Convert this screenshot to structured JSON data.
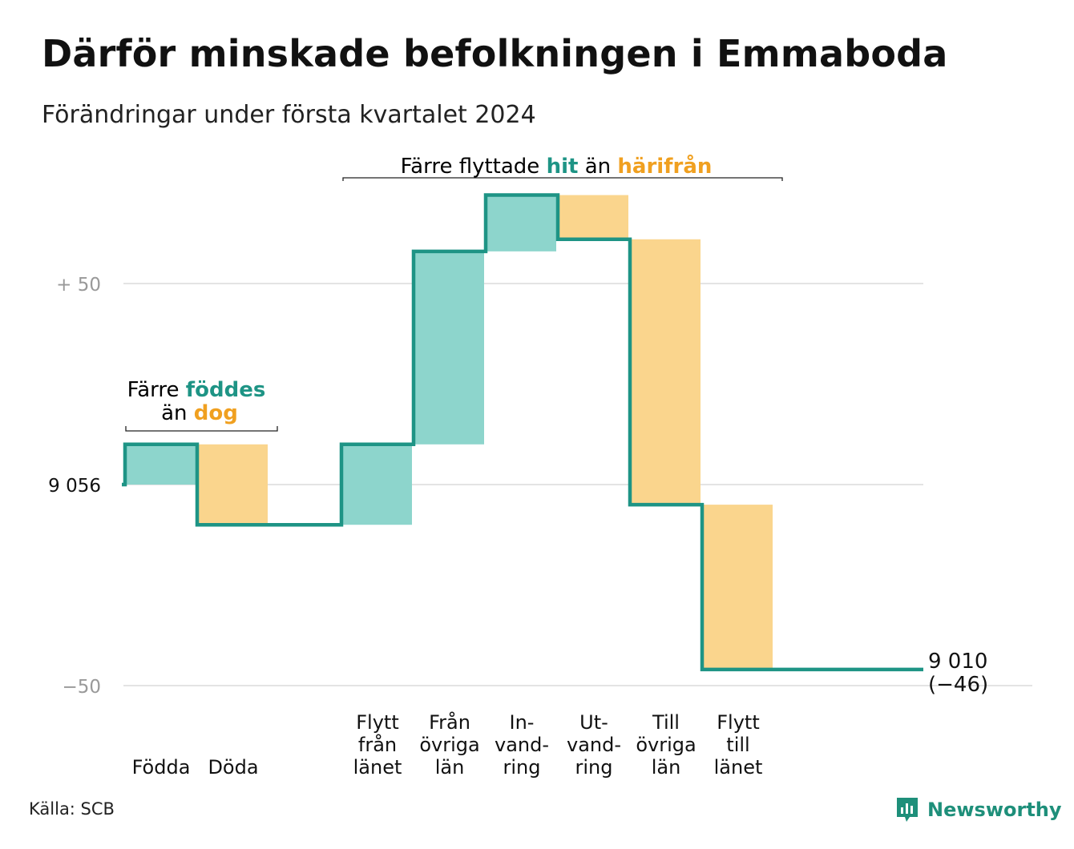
{
  "title": "Därför minskade befolkningen i Emmaboda",
  "subtitle": "Förändringar under första kvartalet 2024",
  "source": "Källa: SCB",
  "brand": "Newsworthy",
  "colors": {
    "increase": "#8dd5cc",
    "decrease": "#fad58d",
    "line": "#1e9485",
    "accent_orange": "#f0a020",
    "grid": "#e4e4e4",
    "tick": "#999999",
    "brand": "#1e8f7a"
  },
  "annotations": {
    "births": {
      "prefix": "Färre",
      "highlight1": "föddes",
      "middle": "än",
      "highlight2": "dog"
    },
    "moves": {
      "prefix": "Färre flyttade",
      "highlight1": "hit",
      "middle": "än",
      "highlight2": "härifrån"
    }
  },
  "chart_data": {
    "type": "waterfall",
    "start_value": 9056,
    "start_label": "9 056",
    "end_value": 9010,
    "end_label": "9 010",
    "end_change_label": "(−46)",
    "ylim": [
      -50,
      50
    ],
    "yticks": [
      {
        "value": 50,
        "label": "+ 50"
      },
      {
        "value": 0,
        "label": "9 056"
      },
      {
        "value": -50,
        "label": "−50"
      }
    ],
    "grid": true,
    "categories": [
      {
        "label": [
          "Födda"
        ],
        "value": 10
      },
      {
        "label": [
          "Döda"
        ],
        "value": -20
      },
      {
        "label": [],
        "value": 0
      },
      {
        "label": [
          "Flytt",
          "från",
          "länet"
        ],
        "value": 20
      },
      {
        "label": [
          "Från",
          "övriga",
          "län"
        ],
        "value": 48
      },
      {
        "label": [
          "In-",
          "vand-",
          "ring"
        ],
        "value": 14
      },
      {
        "label": [
          "Ut-",
          "vand-",
          "ring"
        ],
        "value": -11
      },
      {
        "label": [
          "Till",
          "övriga",
          "län"
        ],
        "value": -66
      },
      {
        "label": [
          "Flytt",
          "till",
          "länet"
        ],
        "value": -41
      }
    ]
  }
}
